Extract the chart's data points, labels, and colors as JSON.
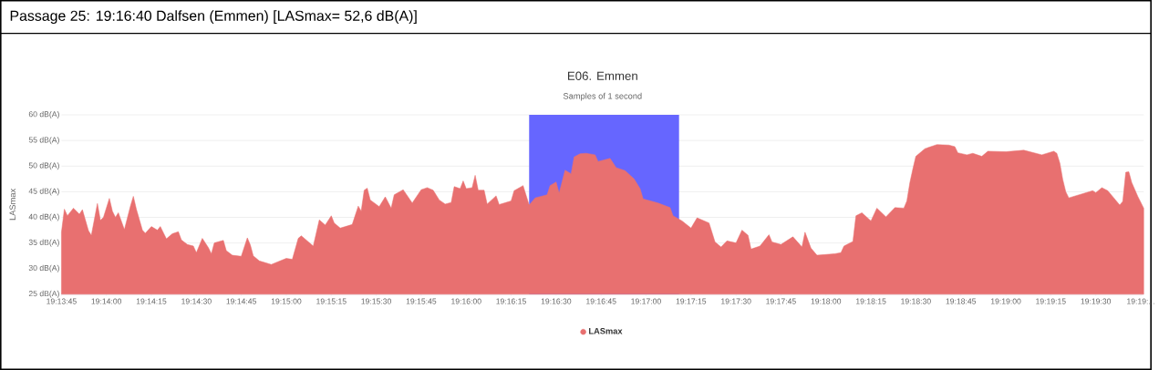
{
  "chart_data": {
    "type": "area",
    "title": "E06. Emmen",
    "subtitle": "Samples of 1 second",
    "ylabel": "LASmax",
    "annotations": [
      "Passage 25: 19:16:40 Dalfsen (Emmen) [LASmax= 52,6 dB(A)]"
    ],
    "series": [
      {
        "name": "LASmax",
        "color": "#e87070",
        "x": [
          19.22917,
          19.22944,
          19.22972,
          19.23028,
          19.23083,
          19.23111,
          19.23167,
          19.23194,
          19.2325,
          19.23278,
          19.23306,
          19.23361,
          19.23389,
          19.23417,
          19.23444,
          19.235,
          19.23556,
          19.23583,
          19.23611,
          19.23667,
          19.23694,
          19.2375,
          19.23806,
          19.23833,
          19.23889,
          19.23944,
          19.24,
          19.24028,
          19.24083,
          19.24139,
          19.24167,
          19.24222,
          19.24278,
          19.24306,
          19.24333,
          19.24417,
          19.24444,
          19.245,
          19.24583,
          19.24639,
          19.24667,
          19.24694,
          19.2475,
          19.24861,
          19.25,
          19.25056,
          19.25111,
          19.25139,
          19.2525,
          19.25306,
          19.25361,
          19.25417,
          19.25444,
          19.255,
          19.25611,
          19.25667,
          19.25694,
          19.25722,
          19.2575,
          19.25778,
          19.25861,
          19.25917,
          19.25972,
          19.26,
          19.26083,
          19.26167,
          19.2625,
          19.26306,
          19.26361,
          19.26417,
          19.26472,
          19.26528,
          19.26556,
          19.26611,
          19.26639,
          19.26667,
          19.26722,
          19.2675,
          19.26778,
          19.26833,
          19.26861,
          19.26944,
          19.26972,
          19.27083,
          19.27111,
          19.27194,
          19.2725,
          19.27306,
          19.27417,
          19.27444,
          19.275,
          19.27528,
          19.27583,
          19.27639,
          19.27667,
          19.27722,
          19.27778,
          19.27861,
          19.27889,
          19.28,
          19.28056,
          19.28139,
          19.28222,
          19.28278,
          19.28306,
          19.28444,
          19.28556,
          19.28583,
          19.28667,
          19.2875,
          19.28806,
          19.28917,
          19.28972,
          19.29028,
          19.29083,
          19.29167,
          19.29222,
          19.29278,
          19.29306,
          19.29389,
          19.29472,
          19.295,
          19.29583,
          19.29694,
          19.29778,
          19.29806,
          19.29861,
          19.29917,
          19.30083,
          19.30139,
          19.30167,
          19.3025,
          19.30278,
          19.30333,
          19.30417,
          19.30472,
          19.30556,
          19.30639,
          19.30722,
          19.3075,
          19.30778,
          19.30806,
          19.30833,
          19.30917,
          19.31028,
          19.31139,
          19.31194,
          19.31222,
          19.31306,
          19.31361,
          19.31444,
          19.315,
          19.31667,
          19.31833,
          19.32,
          19.32111,
          19.32139,
          19.32167,
          19.32194,
          19.32222,
          19.3225,
          19.32361,
          19.32472,
          19.325,
          19.32556,
          19.32611,
          19.32667,
          19.32722,
          19.3275,
          19.32778,
          19.32806,
          19.32833,
          19.32889,
          19.32944
        ],
        "values": [
          37.1,
          41.6,
          40.3,
          41.8,
          40.6,
          41.5,
          37.4,
          36.5,
          42.7,
          39.4,
          40.0,
          43.7,
          41.2,
          40.0,
          40.9,
          37.6,
          42.2,
          44.1,
          41.6,
          37.5,
          36.9,
          38.2,
          37.5,
          38.2,
          35.8,
          36.8,
          37.2,
          35.6,
          34.7,
          34.4,
          33.1,
          35.9,
          34.1,
          32.9,
          35.0,
          35.5,
          33.5,
          32.6,
          32.4,
          36.0,
          34.6,
          32.5,
          31.5,
          30.8,
          32.0,
          31.8,
          35.9,
          36.4,
          34.4,
          39.5,
          38.5,
          40.3,
          38.9,
          37.9,
          38.6,
          42.2,
          41.2,
          45.3,
          45.7,
          43.4,
          42.1,
          44.0,
          41.8,
          44.4,
          45.4,
          42.8,
          45.4,
          45.8,
          45.3,
          43.4,
          42.6,
          42.9,
          46.0,
          45.6,
          47.1,
          45.6,
          45.8,
          48.2,
          45.3,
          45.3,
          42.6,
          44.2,
          42.5,
          43.2,
          45.2,
          46.2,
          42.4,
          43.8,
          44.4,
          46.2,
          46.9,
          44.7,
          49.2,
          48.5,
          51.8,
          52.4,
          52.5,
          52.2,
          50.9,
          51.5,
          49.7,
          49.1,
          47.5,
          45.6,
          43.6,
          42.8,
          41.9,
          40.3,
          39.3,
          37.9,
          39.9,
          38.9,
          35.2,
          34.2,
          35.4,
          35.0,
          37.5,
          36.5,
          33.8,
          34.4,
          36.6,
          35.2,
          34.7,
          36.2,
          34.2,
          37.1,
          34.0,
          32.6,
          32.9,
          33.1,
          34.4,
          35.3,
          40.3,
          40.9,
          39.3,
          41.8,
          40.1,
          41.9,
          41.8,
          43.2,
          46.8,
          49.5,
          51.9,
          53.4,
          54.2,
          54.1,
          53.8,
          52.6,
          52.2,
          52.5,
          51.9,
          52.9,
          52.8,
          53.1,
          52.2,
          52.9,
          52.5,
          50.6,
          47.4,
          45.0,
          43.8,
          44.5,
          45.2,
          44.8,
          45.8,
          45.2,
          43.8,
          42.4,
          43.1,
          48.8,
          48.9,
          46.8,
          44.1,
          41.8
        ]
      }
    ],
    "xlim": [
      19.22917,
      19.32944
    ],
    "xticks": [
      {
        "value": 19.22917,
        "label": "19:13:45"
      },
      {
        "value": 19.23333,
        "label": "19:14:00"
      },
      {
        "value": 19.2375,
        "label": "19:14:15"
      },
      {
        "value": 19.24167,
        "label": "19:14:30"
      },
      {
        "value": 19.24583,
        "label": "19:14:45"
      },
      {
        "value": 19.25,
        "label": "19:15:00"
      },
      {
        "value": 19.25417,
        "label": "19:15:15"
      },
      {
        "value": 19.25833,
        "label": "19:15:30"
      },
      {
        "value": 19.2625,
        "label": "19:15:45"
      },
      {
        "value": 19.26667,
        "label": "19:16:00"
      },
      {
        "value": 19.27083,
        "label": "19:16:15"
      },
      {
        "value": 19.275,
        "label": "19:16:30"
      },
      {
        "value": 19.27917,
        "label": "19:16:45"
      },
      {
        "value": 19.28333,
        "label": "19:17:00"
      },
      {
        "value": 19.2875,
        "label": "19:17:15"
      },
      {
        "value": 19.29167,
        "label": "19:17:30"
      },
      {
        "value": 19.29583,
        "label": "19:17:45"
      },
      {
        "value": 19.3,
        "label": "19:18:00"
      },
      {
        "value": 19.30417,
        "label": "19:18:15"
      },
      {
        "value": 19.30833,
        "label": "19:18:30"
      },
      {
        "value": 19.3125,
        "label": "19:18:45"
      },
      {
        "value": 19.31667,
        "label": "19:19:00"
      },
      {
        "value": 19.32083,
        "label": "19:19:15"
      },
      {
        "value": 19.325,
        "label": "19:19:30"
      },
      {
        "value": 19.32917,
        "label": "19:19:..."
      }
    ],
    "ylim": [
      25,
      60
    ],
    "yticks": [
      {
        "value": 25,
        "label": "25 dB(A)"
      },
      {
        "value": 30,
        "label": "30 dB(A)"
      },
      {
        "value": 35,
        "label": "35 dB(A)"
      },
      {
        "value": 40,
        "label": "40 dB(A)"
      },
      {
        "value": 45,
        "label": "45 dB(A)"
      },
      {
        "value": 50,
        "label": "50 dB(A)"
      },
      {
        "value": 55,
        "label": "55 dB(A)"
      },
      {
        "value": 60,
        "label": "60 dB(A)"
      }
    ],
    "bands": [
      {
        "axis": "x",
        "from": 19.2725,
        "to": 19.28639,
        "color": "#6666ff"
      }
    ],
    "grid": "y",
    "legend": "bottom"
  }
}
